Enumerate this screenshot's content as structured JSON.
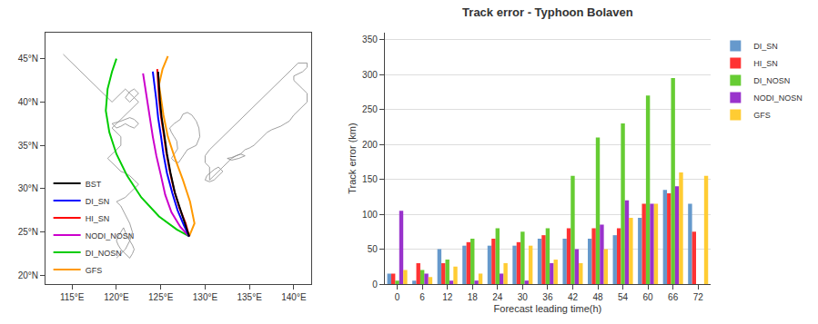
{
  "chart_data": [
    {
      "type": "line",
      "xlim": [
        112,
        142
      ],
      "xticks": [
        {
          "value": 115,
          "label": "115°E"
        },
        {
          "value": 120,
          "label": "120°E"
        },
        {
          "value": 125,
          "label": "125°E"
        },
        {
          "value": 130,
          "label": "130°E"
        },
        {
          "value": 135,
          "label": "135°E"
        },
        {
          "value": 140,
          "label": "140°E"
        }
      ],
      "ylim": [
        19,
        48
      ],
      "yticks": [
        {
          "value": 20,
          "label": "20°N"
        },
        {
          "value": 25,
          "label": "25°N"
        },
        {
          "value": 30,
          "label": "30°N"
        },
        {
          "value": 35,
          "label": "35°N"
        },
        {
          "value": 40,
          "label": "40°N"
        },
        {
          "value": 45,
          "label": "45°N"
        }
      ],
      "grid": false,
      "legend": "lower left",
      "series": [
        {
          "color": "#888888",
          "x": [
            126.9,
            126.5,
            126.2,
            126.5,
            127.0,
            128.0,
            129.0,
            129.4,
            129.3,
            129.0,
            128.5,
            128.0,
            127.5,
            127.2,
            126.5,
            126.0,
            126.2,
            126.5,
            126.8,
            126.9
          ],
          "values": [
            34.6,
            34.0,
            33.5,
            33.2,
            33.0,
            34.5,
            35.0,
            36.0,
            37.0,
            37.8,
            38.5,
            38.8,
            38.6,
            38.0,
            37.5,
            37.0,
            36.5,
            36.0,
            35.5,
            34.6
          ]
        },
        {
          "color": "#888888",
          "x": [
            130.5,
            131.0,
            131.5,
            132.0,
            132.5,
            133.0,
            133.5,
            134.0,
            134.5,
            135.0,
            135.5,
            136.0,
            136.5,
            137.0,
            137.5,
            138.0,
            138.5,
            139.0,
            139.5,
            140.0,
            140.5,
            141.0,
            141.5,
            141.5,
            141.0,
            140.5,
            140.0,
            140.0,
            141.0,
            141.5,
            141.5,
            140.5,
            140.0,
            139.5,
            139.0,
            138.5,
            138.0,
            137.5,
            137.0,
            136.5,
            136.0,
            135.5,
            135.0,
            134.5,
            134.0,
            133.5,
            133.0,
            132.5,
            132.0,
            131.5,
            131.0,
            130.5,
            130.0,
            130.0,
            130.5,
            130.5
          ],
          "values": [
            31.0,
            31.5,
            32.0,
            32.5,
            33.0,
            33.5,
            33.8,
            34.0,
            34.5,
            34.7,
            35.0,
            35.5,
            36.0,
            36.5,
            36.8,
            37.0,
            37.2,
            37.5,
            37.8,
            38.5,
            39.0,
            39.5,
            40.0,
            41.0,
            41.5,
            42.0,
            42.5,
            43.0,
            43.5,
            44.0,
            44.5,
            44.5,
            44.0,
            43.5,
            43.0,
            42.5,
            42.0,
            41.5,
            41.0,
            40.5,
            40.0,
            39.5,
            39.0,
            38.5,
            38.0,
            37.5,
            37.0,
            36.5,
            36.0,
            35.5,
            35.0,
            34.5,
            33.8,
            33.0,
            32.5,
            31.0
          ]
        },
        {
          "color": "#888888",
          "x": [
            130.2,
            130.5,
            131.0,
            131.5,
            132.0,
            131.5,
            131.0,
            130.5,
            130.0,
            130.2
          ],
          "values": [
            31.5,
            31.8,
            32.2,
            32.5,
            32.0,
            31.5,
            31.0,
            30.8,
            31.0,
            31.5
          ]
        },
        {
          "color": "#888888",
          "x": [
            132.5,
            133.0,
            133.5,
            134.0,
            134.5,
            133.8,
            133.0,
            132.5
          ],
          "values": [
            33.5,
            33.6,
            33.8,
            34.0,
            33.8,
            33.5,
            33.3,
            33.5
          ]
        },
        {
          "color": "#888888",
          "x": [
            120.0,
            120.5,
            121.0,
            121.5,
            121.8,
            121.5,
            121.0,
            120.5,
            120.0,
            121.0,
            121.5,
            122.0,
            122.5,
            122.0,
            121.5,
            121.0,
            120.5,
            120.0,
            119.5,
            119.0,
            119.5,
            120.0,
            120.5,
            120.5,
            120.0,
            119.5,
            120.0,
            120.5,
            121.0,
            121.5,
            122.0,
            122.5,
            122.0,
            121.5,
            121.0,
            120.5,
            120.0,
            119.5,
            119.0,
            118.5,
            118.0,
            117.5,
            117.0,
            116.5,
            116.0,
            115.5,
            115.0,
            114.5,
            114.0
          ],
          "values": [
            22.0,
            22.5,
            23.0,
            24.0,
            25.0,
            26.0,
            27.0,
            28.0,
            28.5,
            29.0,
            29.5,
            30.0,
            30.5,
            31.0,
            31.5,
            31.8,
            32.0,
            32.5,
            33.0,
            33.5,
            34.0,
            34.5,
            35.0,
            36.0,
            36.5,
            37.0,
            37.5,
            38.0,
            38.5,
            39.0,
            39.5,
            40.0,
            40.5,
            41.0,
            41.5,
            41.0,
            40.5,
            40.0,
            40.5,
            41.0,
            41.5,
            42.0,
            42.5,
            43.0,
            43.5,
            44.0,
            44.5,
            45.0,
            45.5
          ]
        },
        {
          "color": "#888888",
          "x": [
            121.5,
            121.8,
            122.0,
            121.8,
            121.5,
            121.2,
            121.0,
            120.8,
            120.5,
            120.2,
            120.0,
            120.2,
            120.5,
            121.0,
            121.5
          ],
          "values": [
            22.0,
            22.5,
            23.0,
            23.5,
            24.0,
            24.5,
            25.0,
            25.5,
            25.0,
            24.5,
            24.0,
            23.5,
            23.0,
            22.5,
            22.0
          ]
        },
        {
          "color": "#888888",
          "x": [
            119.5,
            120.0,
            120.5,
            121.0,
            121.5,
            122.0,
            122.5,
            122.0,
            121.5,
            121.0,
            120.5,
            119.5
          ],
          "values": [
            37.5,
            37.0,
            37.2,
            37.5,
            37.2,
            37.0,
            37.5,
            38.0,
            38.2,
            38.0,
            37.8,
            37.5
          ]
        },
        {
          "color": "#888888",
          "x": [
            121.0,
            121.5,
            122.0,
            122.5,
            122.0,
            121.5,
            121.0
          ],
          "values": [
            40.5,
            40.0,
            40.5,
            41.0,
            41.5,
            41.2,
            40.5
          ]
        },
        {
          "name": "BST",
          "color": "#000000",
          "x": [
            128.2,
            127.8,
            127.2,
            126.6,
            126.1,
            125.7,
            125.4,
            125.1,
            124.9,
            124.8,
            124.7
          ],
          "values": [
            24.5,
            25.8,
            27.5,
            29.5,
            31.8,
            34.0,
            36.2,
            38.2,
            40.2,
            42.0,
            43.5
          ]
        },
        {
          "name": "DI_SN",
          "color": "#0000FF",
          "x": [
            128.2,
            127.6,
            126.9,
            126.3,
            125.7,
            125.3,
            125.0,
            124.7,
            124.5,
            124.3,
            124.1
          ],
          "values": [
            24.5,
            25.8,
            27.5,
            29.5,
            31.8,
            34.0,
            36.2,
            38.2,
            40.2,
            42.0,
            43.5
          ]
        },
        {
          "name": "HI_SN",
          "color": "#FF0000",
          "x": [
            128.2,
            127.8,
            127.1,
            126.5,
            126.0,
            125.6,
            125.3,
            125.0,
            124.8,
            124.7,
            124.6
          ],
          "values": [
            24.5,
            26.0,
            27.8,
            29.8,
            32.1,
            34.3,
            36.5,
            38.5,
            40.5,
            42.3,
            43.8
          ]
        },
        {
          "name": "NODI_NOSN",
          "color": "#CC00CC",
          "x": [
            128.2,
            127.2,
            126.2,
            125.5,
            125.0,
            124.5,
            124.1,
            123.8,
            123.5,
            123.2,
            123.0
          ],
          "values": [
            24.5,
            25.6,
            27.3,
            29.3,
            31.6,
            33.8,
            36.0,
            38.0,
            40.0,
            41.8,
            43.3
          ]
        },
        {
          "name": "DI_NOSN",
          "color": "#00CC00",
          "x": [
            128.2,
            126.8,
            124.8,
            122.8,
            121.2,
            120.0,
            119.2,
            118.8,
            119.0,
            119.5,
            120.0
          ],
          "values": [
            24.5,
            25.3,
            26.8,
            29.0,
            31.5,
            34.0,
            36.5,
            39.0,
            41.5,
            43.5,
            45.0
          ]
        },
        {
          "name": "GFS",
          "color": "#FF9900",
          "x": [
            128.2,
            128.8,
            128.3,
            127.5,
            126.6,
            125.8,
            125.3,
            125.0,
            124.8,
            125.2,
            125.8
          ],
          "values": [
            24.5,
            26.0,
            28.5,
            31.0,
            33.5,
            36.0,
            38.5,
            40.5,
            42.0,
            43.8,
            45.3
          ]
        }
      ]
    },
    {
      "type": "bar",
      "title": "Track error - Typhoon Bolaven",
      "x_label": "Forecast leading time(h)",
      "y_label": "Track error (km)",
      "categories": [
        "0",
        "6",
        "12",
        "18",
        "24",
        "30",
        "36",
        "42",
        "48",
        "54",
        "60",
        "66",
        "72"
      ],
      "ylim": [
        0,
        360
      ],
      "yticks": [
        0,
        50,
        100,
        150,
        200,
        250,
        300,
        350
      ],
      "grid": true,
      "legend": "upper right",
      "series": [
        {
          "name": "DI_SN",
          "color": "#6699CC",
          "values": [
            15,
            5,
            50,
            55,
            55,
            55,
            65,
            65,
            65,
            70,
            95,
            135,
            115
          ]
        },
        {
          "name": "HI_SN",
          "color": "#FF3333",
          "values": [
            15,
            30,
            30,
            60,
            65,
            60,
            70,
            80,
            80,
            80,
            115,
            130,
            75
          ]
        },
        {
          "name": "DI_NOSN",
          "color": "#66CC33",
          "values": [
            5,
            20,
            35,
            65,
            80,
            75,
            80,
            155,
            210,
            230,
            270,
            295,
            0
          ]
        },
        {
          "name": "NODI_NOSN",
          "color": "#9933CC",
          "values": [
            105,
            15,
            5,
            5,
            15,
            5,
            30,
            50,
            85,
            120,
            115,
            140,
            0
          ]
        },
        {
          "name": "GFS",
          "color": "#FFCC33",
          "values": [
            20,
            10,
            25,
            15,
            30,
            55,
            35,
            30,
            50,
            95,
            115,
            160,
            155
          ]
        }
      ]
    }
  ]
}
